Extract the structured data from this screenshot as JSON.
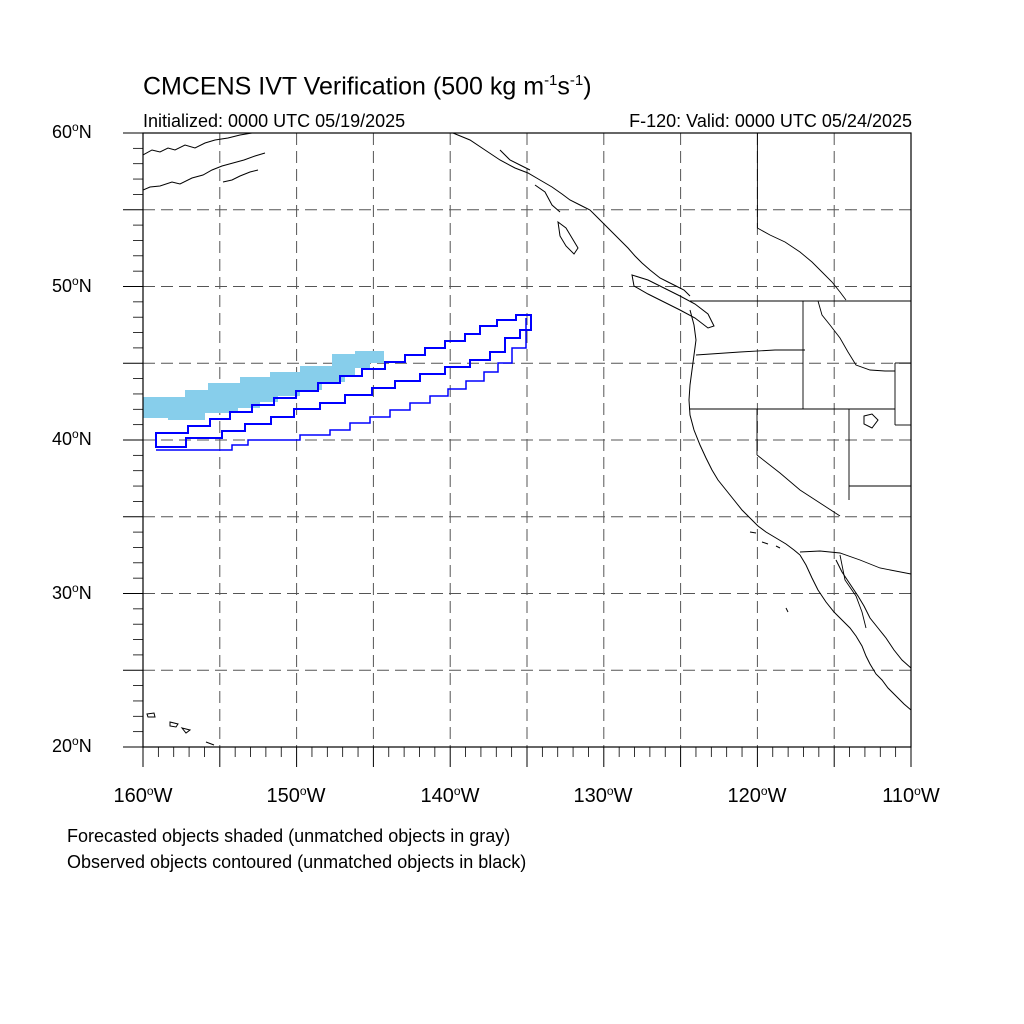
{
  "header": {
    "title_main": "CMCENS IVT Verification (500 kg m",
    "title_exp1": "-1",
    "title_mid": "s",
    "title_exp2": "-1",
    "title_end": ")",
    "initialized": "Initialized: 0000 UTC 05/19/2025",
    "valid": "F-120: Valid: 0000 UTC 05/24/2025"
  },
  "axes": {
    "lat_labels": [
      {
        "value": "60",
        "unit": "o",
        "hemi": "N"
      },
      {
        "value": "50",
        "unit": "o",
        "hemi": "N"
      },
      {
        "value": "40",
        "unit": "o",
        "hemi": "N"
      },
      {
        "value": "30",
        "unit": "o",
        "hemi": "N"
      },
      {
        "value": "20",
        "unit": "o",
        "hemi": "N"
      }
    ],
    "lon_labels": [
      {
        "value": "160",
        "unit": "o",
        "hemi": "W"
      },
      {
        "value": "150",
        "unit": "o",
        "hemi": "W"
      },
      {
        "value": "140",
        "unit": "o",
        "hemi": "W"
      },
      {
        "value": "130",
        "unit": "o",
        "hemi": "W"
      },
      {
        "value": "120",
        "unit": "o",
        "hemi": "W"
      },
      {
        "value": "110",
        "unit": "o",
        "hemi": "W"
      }
    ],
    "lat_range": [
      20,
      60
    ],
    "lon_range": [
      -160,
      -110
    ],
    "grid": "dashed every 5 degrees"
  },
  "legend": {
    "line1": "Forecasted objects shaded (unmatched objects in gray)",
    "line2": "Observed objects contoured (unmatched objects in black)"
  },
  "colors": {
    "forecast_fill": "#87ceeb",
    "observed_contour": "#0000ff",
    "coast": "#000000",
    "grid": "#555555"
  }
}
